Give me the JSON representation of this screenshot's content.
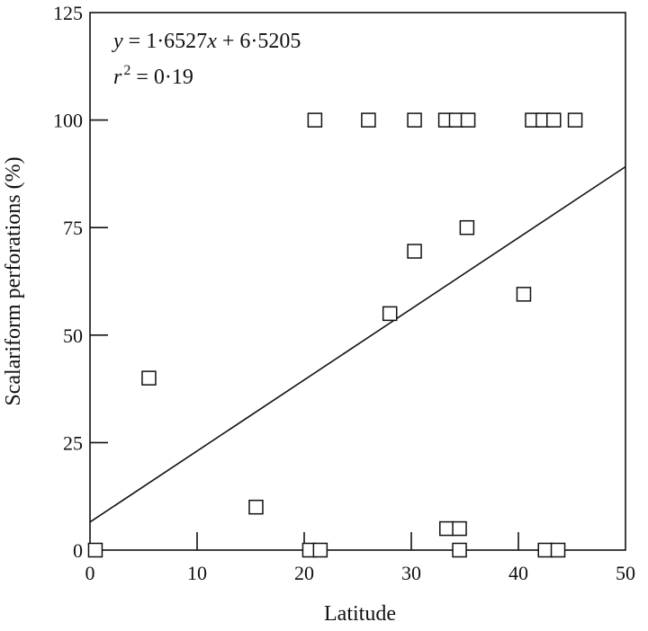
{
  "chart_data": {
    "type": "scatter",
    "title": "",
    "xlabel": "Latitude",
    "ylabel": "Scalariform perforations (%)",
    "xlim": [
      0,
      50
    ],
    "ylim": [
      0,
      125
    ],
    "x_ticks": [
      0,
      10,
      20,
      30,
      40,
      50
    ],
    "y_ticks": [
      0,
      25,
      50,
      75,
      100,
      125
    ],
    "x_tick_labels": [
      "0",
      "10",
      "20",
      "30",
      "40",
      "50"
    ],
    "y_tick_labels": [
      "0",
      "25",
      "50",
      "75",
      "100",
      "125"
    ],
    "grid": false,
    "marker": "open-square",
    "annotations": {
      "equation_y": "y",
      "equation_rest": " = 1·6527",
      "equation_x": "x",
      "equation_tail": " + 6·5205",
      "r_label": "r",
      "r_exp": "2",
      "r_value": " = 0·19"
    },
    "regression": {
      "slope": 1.6527,
      "intercept": 6.5205
    },
    "points": [
      {
        "x": 0.5,
        "y": 0
      },
      {
        "x": 5.5,
        "y": 40
      },
      {
        "x": 15.5,
        "y": 10
      },
      {
        "x": 20.5,
        "y": 0
      },
      {
        "x": 21.5,
        "y": 0
      },
      {
        "x": 21.0,
        "y": 100
      },
      {
        "x": 26.0,
        "y": 100
      },
      {
        "x": 28.0,
        "y": 55
      },
      {
        "x": 30.3,
        "y": 69.5
      },
      {
        "x": 30.3,
        "y": 100
      },
      {
        "x": 33.2,
        "y": 100
      },
      {
        "x": 34.2,
        "y": 100
      },
      {
        "x": 35.3,
        "y": 100
      },
      {
        "x": 35.2,
        "y": 75
      },
      {
        "x": 33.3,
        "y": 5
      },
      {
        "x": 34.5,
        "y": 5
      },
      {
        "x": 34.5,
        "y": 0
      },
      {
        "x": 40.5,
        "y": 59.5
      },
      {
        "x": 41.3,
        "y": 100
      },
      {
        "x": 42.3,
        "y": 100
      },
      {
        "x": 43.3,
        "y": 100
      },
      {
        "x": 45.3,
        "y": 100
      },
      {
        "x": 42.5,
        "y": 0
      },
      {
        "x": 43.7,
        "y": 0
      }
    ]
  }
}
